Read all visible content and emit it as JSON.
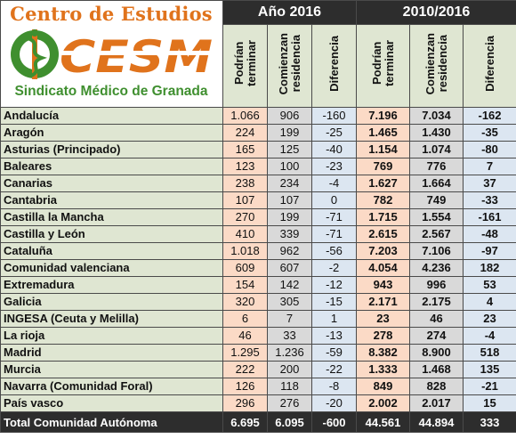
{
  "logo": {
    "title": "Centro de Estudios",
    "mark": "CESM",
    "subtitle": "Sindicato Médico de Granada",
    "colors": {
      "orange": "#e0731c",
      "green": "#3f8f2f"
    }
  },
  "header": {
    "group_2016": "Año 2016",
    "group_2010_2016": "2010/2016",
    "col_podrian": [
      "Podrían",
      "terminar"
    ],
    "col_comienzan": [
      "Comienzan",
      "residencia"
    ],
    "col_diferencia": "Diferencia"
  },
  "rows": [
    {
      "name": "Andalucía",
      "a16": "1.066",
      "b16": "906",
      "d16": "-160",
      "a10": "7.196",
      "b10": "7.034",
      "d10": "-162"
    },
    {
      "name": "Aragón",
      "a16": "224",
      "b16": "199",
      "d16": "-25",
      "a10": "1.465",
      "b10": "1.430",
      "d10": "-35"
    },
    {
      "name": "Asturias (Principado)",
      "a16": "165",
      "b16": "125",
      "d16": "-40",
      "a10": "1.154",
      "b10": "1.074",
      "d10": "-80"
    },
    {
      "name": "Baleares",
      "a16": "123",
      "b16": "100",
      "d16": "-23",
      "a10": "769",
      "b10": "776",
      "d10": "7"
    },
    {
      "name": "Canarias",
      "a16": "238",
      "b16": "234",
      "d16": "-4",
      "a10": "1.627",
      "b10": "1.664",
      "d10": "37"
    },
    {
      "name": "Cantabria",
      "a16": "107",
      "b16": "107",
      "d16": "0",
      "a10": "782",
      "b10": "749",
      "d10": "-33"
    },
    {
      "name": "Castilla la Mancha",
      "a16": "270",
      "b16": "199",
      "d16": "-71",
      "a10": "1.715",
      "b10": "1.554",
      "d10": "-161"
    },
    {
      "name": "Castilla y León",
      "a16": "410",
      "b16": "339",
      "d16": "-71",
      "a10": "2.615",
      "b10": "2.567",
      "d10": "-48"
    },
    {
      "name": "Cataluña",
      "a16": "1.018",
      "b16": "962",
      "d16": "-56",
      "a10": "7.203",
      "b10": "7.106",
      "d10": "-97"
    },
    {
      "name": "Comunidad valenciana",
      "a16": "609",
      "b16": "607",
      "d16": "-2",
      "a10": "4.054",
      "b10": "4.236",
      "d10": "182"
    },
    {
      "name": "Extremadura",
      "a16": "154",
      "b16": "142",
      "d16": "-12",
      "a10": "943",
      "b10": "996",
      "d10": "53"
    },
    {
      "name": "Galicia",
      "a16": "320",
      "b16": "305",
      "d16": "-15",
      "a10": "2.171",
      "b10": "2.175",
      "d10": "4"
    },
    {
      "name": "INGESA (Ceuta y Melilla)",
      "a16": "6",
      "b16": "7",
      "d16": "1",
      "a10": "23",
      "b10": "46",
      "d10": "23"
    },
    {
      "name": "La rioja",
      "a16": "46",
      "b16": "33",
      "d16": "-13",
      "a10": "278",
      "b10": "274",
      "d10": "-4"
    },
    {
      "name": "Madrid",
      "a16": "1.295",
      "b16": "1.236",
      "d16": "-59",
      "a10": "8.382",
      "b10": "8.900",
      "d10": "518"
    },
    {
      "name": "Murcia",
      "a16": "222",
      "b16": "200",
      "d16": "-22",
      "a10": "1.333",
      "b10": "1.468",
      "d10": "135"
    },
    {
      "name": "Navarra (Comunidad Foral)",
      "a16": "126",
      "b16": "118",
      "d16": "-8",
      "a10": "849",
      "b10": "828",
      "d10": "-21"
    },
    {
      "name": "País vasco",
      "a16": "296",
      "b16": "276",
      "d16": "-20",
      "a10": "2.002",
      "b10": "2.017",
      "d10": "15"
    }
  ],
  "total": {
    "name": "Total Comunidad Autónoma",
    "a16": "6.695",
    "b16": "6.095",
    "d16": "-600",
    "a10": "44.561",
    "b10": "44.894",
    "d10": "333"
  },
  "colors": {
    "orange": "#fbdac6",
    "gray": "#d9d9d9",
    "blue": "#dce6f1",
    "label_green": "#dfe6d2",
    "dark": "#2d2d2d"
  }
}
